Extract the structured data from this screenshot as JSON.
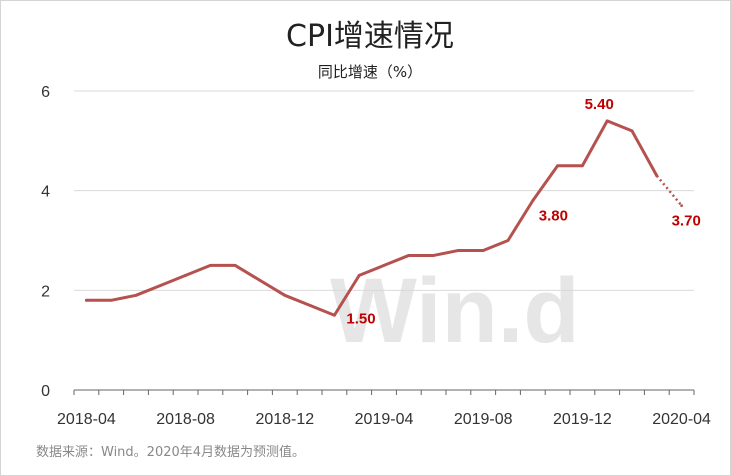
{
  "chart_data": {
    "type": "line",
    "title": "CPI增速情况",
    "subtitle": "同比增速（%）",
    "x": [
      "2018-04",
      "2018-05",
      "2018-06",
      "2018-07",
      "2018-08",
      "2018-09",
      "2018-10",
      "2018-11",
      "2018-12",
      "2019-01",
      "2019-02",
      "2019-03",
      "2019-04",
      "2019-05",
      "2019-06",
      "2019-07",
      "2019-08",
      "2019-09",
      "2019-10",
      "2019-11",
      "2019-12",
      "2020-01",
      "2020-02",
      "2020-03",
      "2020-04"
    ],
    "series": [
      {
        "values": [
          1.8,
          1.8,
          1.9,
          2.1,
          2.3,
          2.5,
          2.5,
          2.2,
          1.9,
          1.7,
          1.5,
          2.3,
          2.5,
          2.7,
          2.7,
          2.8,
          2.8,
          3.0,
          3.8,
          4.5,
          4.5,
          5.4,
          5.2,
          4.3,
          3.7
        ],
        "forecast_from_index": 23
      }
    ],
    "x_tick_labels": [
      "2018-04",
      "2018-08",
      "2018-12",
      "2019-04",
      "2019-08",
      "2019-12",
      "2020-04"
    ],
    "y_ticks": [
      0,
      2,
      4,
      6
    ],
    "ylim": [
      0,
      6
    ],
    "grid": "horizontal",
    "annotations": [
      {
        "x": "2019-02",
        "y": 1.5,
        "text": "1.50"
      },
      {
        "x": "2019-10",
        "y": 3.8,
        "text": "3.80"
      },
      {
        "x": "2020-01",
        "y": 5.4,
        "text": "5.40"
      },
      {
        "x": "2020-04",
        "y": 3.7,
        "text": "3.70"
      }
    ],
    "watermark": "Win.d",
    "source": "数据来源：Wind。2020年4月数据为预测值。",
    "line_color": "#b5514e",
    "annotation_color": "#c00000"
  }
}
